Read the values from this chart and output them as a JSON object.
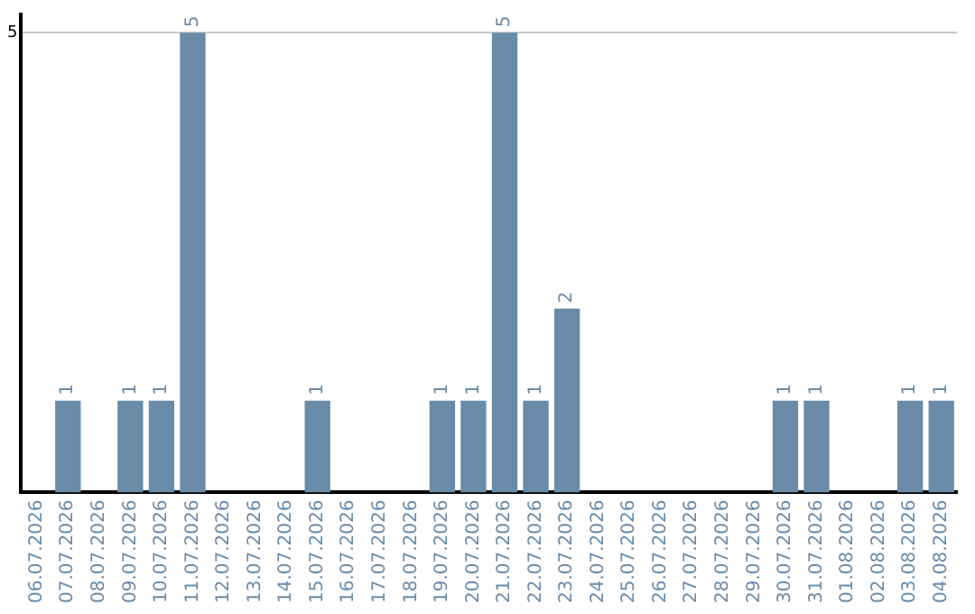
{
  "chart_data": {
    "type": "bar",
    "categories": [
      "06.07.2026",
      "07.07.2026",
      "08.07.2026",
      "09.07.2026",
      "10.07.2026",
      "11.07.2026",
      "12.07.2026",
      "13.07.2026",
      "14.07.2026",
      "15.07.2026",
      "16.07.2026",
      "17.07.2026",
      "18.07.2026",
      "19.07.2026",
      "20.07.2026",
      "21.07.2026",
      "22.07.2026",
      "23.07.2026",
      "24.07.2026",
      "25.07.2026",
      "26.07.2026",
      "27.07.2026",
      "28.07.2026",
      "29.07.2026",
      "30.07.2026",
      "31.07.2026",
      "01.08.2026",
      "02.08.2026",
      "03.08.2026",
      "04.08.2026"
    ],
    "values": [
      0,
      1,
      0,
      1,
      1,
      5,
      0,
      0,
      0,
      1,
      0,
      0,
      0,
      1,
      1,
      5,
      1,
      2,
      0,
      0,
      0,
      0,
      0,
      0,
      1,
      1,
      0,
      0,
      1,
      1
    ],
    "value_labels": [
      null,
      "1",
      null,
      "1",
      "1",
      "5",
      null,
      null,
      null,
      "1",
      null,
      null,
      null,
      "1",
      "1",
      "5",
      "1",
      "2",
      null,
      null,
      null,
      null,
      null,
      null,
      "1",
      "1",
      null,
      null,
      "1",
      "1"
    ],
    "color": "#6a8ba8",
    "ylim": [
      0,
      5.2
    ],
    "yticks": [
      5
    ],
    "grid": "y",
    "legend": false
  }
}
